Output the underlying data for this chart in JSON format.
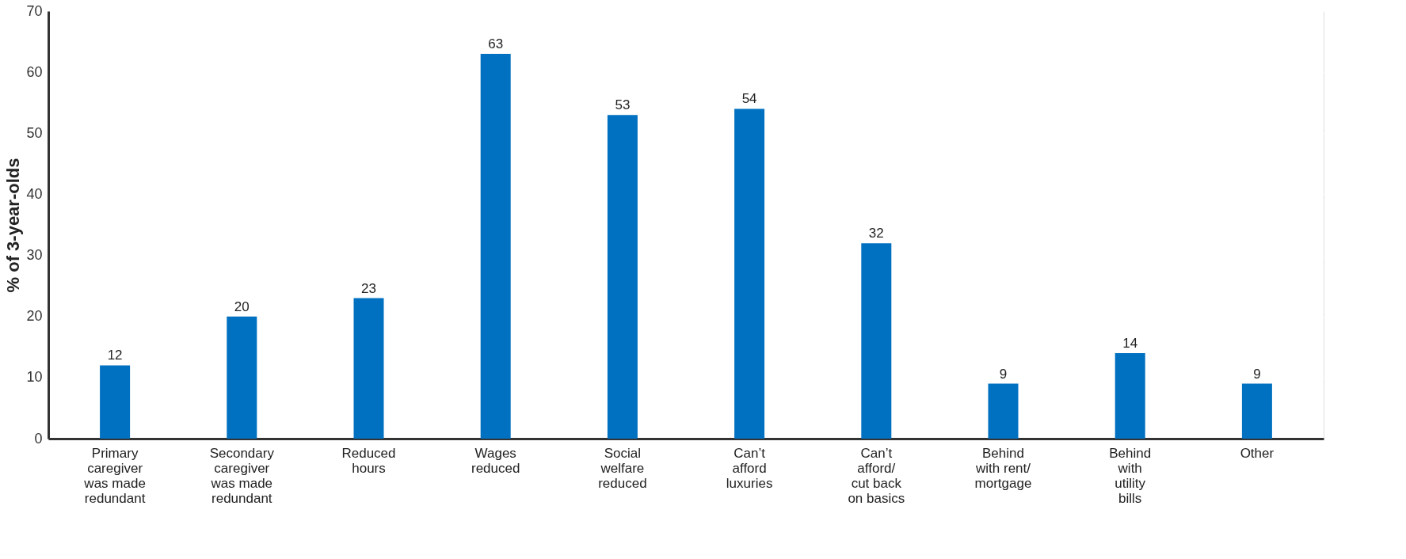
{
  "chart_data": {
    "type": "bar",
    "ylabel": "% of 3-year-olds",
    "categories": [
      "Primary caregiver was made redundant",
      "Secondary caregiver was made redundant",
      "Reduced hours",
      "Wages reduced",
      "Social welfare reduced",
      "Can’t afford luxuries",
      "Can’t afford/ cut back on basics",
      "Behind with rent/ mortgage",
      "Behind with utility bills",
      "Other"
    ],
    "values": [
      12,
      20,
      23,
      63,
      53,
      54,
      32,
      9,
      14,
      9
    ],
    "color": "#0070c0",
    "ylim": [
      0,
      70
    ],
    "yticks": [
      0,
      10,
      20,
      30,
      40,
      50,
      60,
      70
    ],
    "grid": "y",
    "data_labels": true
  }
}
